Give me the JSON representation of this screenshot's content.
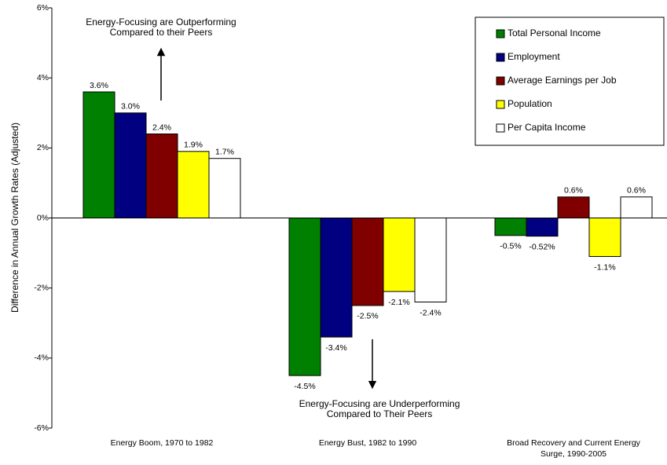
{
  "chart_data": {
    "type": "bar",
    "y_label": "Difference in Annual Growth Rates (Adjusted)",
    "categories": [
      "Energy Boom, 1970 to 1982",
      "Energy Bust, 1982 to 1990",
      "Broad Recovery and Current Energy Surge, 1990-2005"
    ],
    "series": [
      {
        "name": "Total Personal Income",
        "color": "#008000",
        "values": [
          3.6,
          -4.5,
          -0.5
        ],
        "value_labels": [
          "3.6%",
          "-4.5%",
          "-0.5%"
        ]
      },
      {
        "name": "Employment",
        "color": "#000080",
        "values": [
          3.0,
          -3.4,
          -0.52
        ],
        "value_labels": [
          "3.0%",
          "-3.4%",
          "-0.52%"
        ]
      },
      {
        "name": "Average Earnings per Job",
        "color": "#800000",
        "values": [
          2.4,
          -2.5,
          0.6
        ],
        "value_labels": [
          "2.4%",
          "-2.5%",
          "0.6%"
        ]
      },
      {
        "name": "Population",
        "color": "#ffff00",
        "values": [
          1.9,
          -2.1,
          -1.1
        ],
        "value_labels": [
          "1.9%",
          "-2.1%",
          "-1.1%"
        ]
      },
      {
        "name": "Per Capita Income",
        "color": "#ffffff",
        "values": [
          1.7,
          -2.4,
          0.6
        ],
        "value_labels": [
          "1.7%",
          "-2.4%",
          "0.6%"
        ]
      }
    ],
    "ylim": [
      -6,
      6
    ],
    "yticks": [
      {
        "value": -6,
        "label": "-6%"
      },
      {
        "value": -4,
        "label": "-4%"
      },
      {
        "value": -2,
        "label": "-2%"
      },
      {
        "value": 0,
        "label": "0%"
      },
      {
        "value": 2,
        "label": "2%"
      },
      {
        "value": 4,
        "label": "4%"
      },
      {
        "value": 6,
        "label": "6%"
      }
    ],
    "grid": false,
    "legend_position": "upper right",
    "annotations": [
      "Energy-Focusing are Outperforming Compared to their Peers",
      "Energy-Focusing are Underperforming Compared to Their Peers"
    ]
  }
}
